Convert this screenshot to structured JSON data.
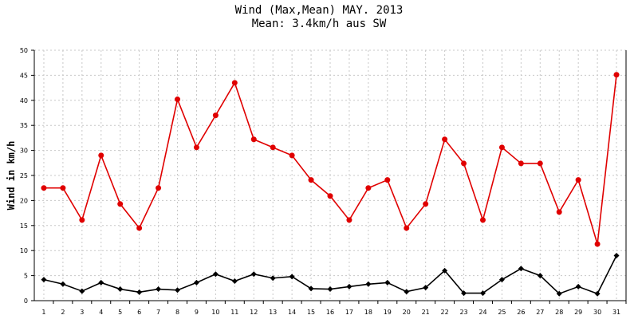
{
  "chart_data": {
    "type": "line",
    "title": "Wind (Max,Mean) MAY. 2013",
    "subtitle": "Mean: 3.4km/h aus SW",
    "xlabel": "",
    "ylabel": "Wind in km/h",
    "ylim": [
      0,
      50
    ],
    "yticks": [
      0,
      5,
      10,
      15,
      20,
      25,
      30,
      35,
      40,
      45,
      50
    ],
    "grid": true,
    "categories": [
      "1",
      "2",
      "3",
      "4",
      "5",
      "6",
      "7",
      "8",
      "9",
      "10",
      "11",
      "12",
      "13",
      "14",
      "15",
      "16",
      "17",
      "18",
      "19",
      "20",
      "21",
      "22",
      "23",
      "24",
      "25",
      "26",
      "27",
      "28",
      "29",
      "30",
      "31"
    ],
    "series": [
      {
        "name": "",
        "color": "#e00000",
        "marker": "circle",
        "values": [
          22.5,
          22.5,
          16.1,
          29.0,
          19.3,
          14.5,
          22.5,
          40.2,
          30.6,
          37.0,
          43.5,
          32.2,
          30.6,
          29.0,
          24.1,
          20.9,
          16.1,
          22.5,
          24.1,
          14.5,
          19.3,
          32.2,
          27.4,
          16.1,
          30.6,
          27.4,
          27.4,
          17.7,
          24.1,
          11.3,
          45.1
        ]
      },
      {
        "name": "",
        "color": "#000000",
        "marker": "diamond",
        "values": [
          4.2,
          3.3,
          1.9,
          3.6,
          2.3,
          1.7,
          2.3,
          2.1,
          3.6,
          5.3,
          3.9,
          5.3,
          4.5,
          4.8,
          2.4,
          2.3,
          2.8,
          3.3,
          3.6,
          1.8,
          2.6,
          6.0,
          1.5,
          1.5,
          4.2,
          6.4,
          5.0,
          1.4,
          2.8,
          1.4,
          9.0
        ]
      }
    ]
  }
}
